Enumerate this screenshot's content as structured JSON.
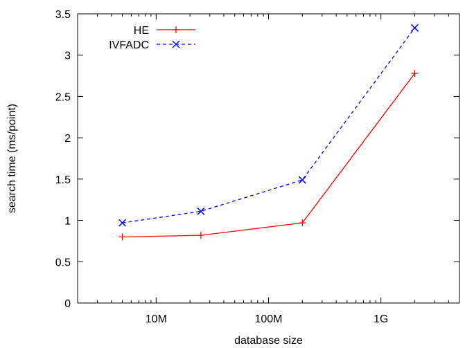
{
  "chart_data": {
    "type": "line",
    "title": "",
    "xlabel": "database size",
    "ylabel": "search time (ms/point)",
    "x_scale": "log",
    "xlim": [
      2000000,
      5000000000
    ],
    "ylim": [
      0,
      3.5
    ],
    "x_ticks": [
      {
        "value": 10000000,
        "label": "10M"
      },
      {
        "value": 100000000,
        "label": "100M"
      },
      {
        "value": 1000000000,
        "label": "1G"
      }
    ],
    "y_ticks": [
      {
        "value": 0,
        "label": "0"
      },
      {
        "value": 0.5,
        "label": "0.5"
      },
      {
        "value": 1,
        "label": "1"
      },
      {
        "value": 1.5,
        "label": "1.5"
      },
      {
        "value": 2,
        "label": "2"
      },
      {
        "value": 2.5,
        "label": "2.5"
      },
      {
        "value": 3,
        "label": "3"
      },
      {
        "value": 3.5,
        "label": "3.5"
      }
    ],
    "grid": false,
    "legend_position": "top-left",
    "x": [
      5000000,
      25000000,
      200000000,
      2000000000
    ],
    "series": [
      {
        "name": "HE",
        "values": [
          0.8,
          0.82,
          0.97,
          2.78
        ],
        "color": "#ff0000",
        "dash": "solid",
        "marker": "plus"
      },
      {
        "name": "IVFADC",
        "values": [
          0.97,
          1.11,
          1.49,
          3.33
        ],
        "color": "#0000ff",
        "dash": "dashed",
        "marker": "cross"
      }
    ]
  }
}
